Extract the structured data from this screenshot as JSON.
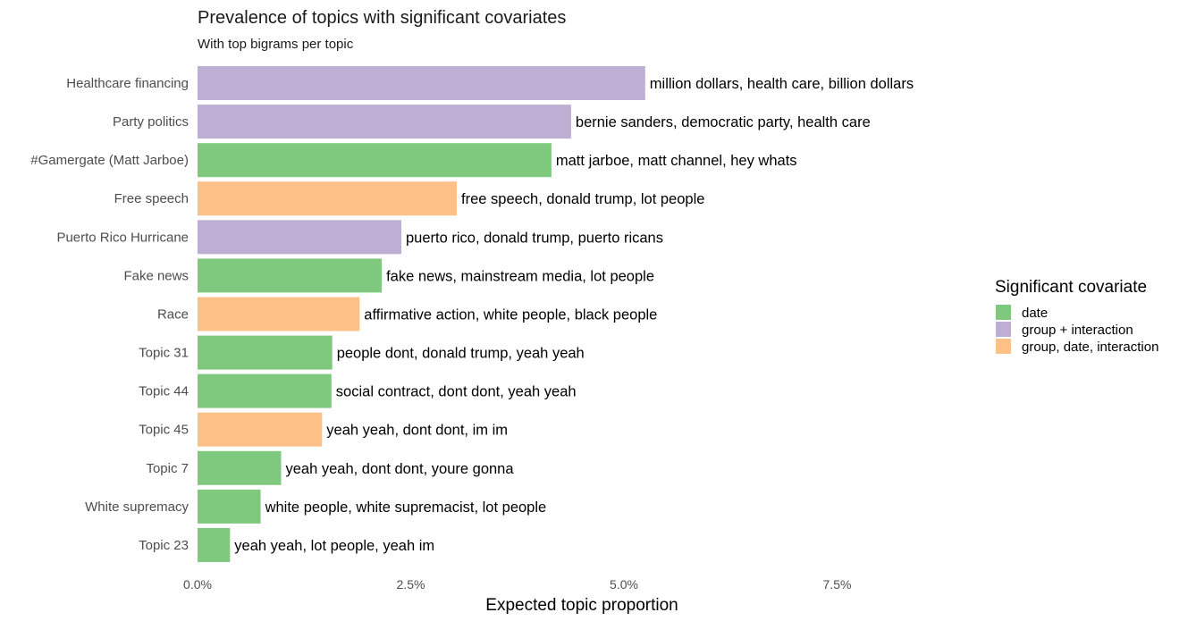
{
  "chart_data": {
    "type": "bar",
    "orientation": "horizontal",
    "title": "Prevalence of topics with significant covariates",
    "subtitle": "With top bigrams per topic",
    "xlabel": "Expected topic proportion",
    "ylabel": "",
    "xlim": [
      0,
      0.09
    ],
    "x_ticks": [
      {
        "value": 0.0,
        "label": "0.0%"
      },
      {
        "value": 0.025,
        "label": "2.5%"
      },
      {
        "value": 0.05,
        "label": "5.0%"
      },
      {
        "value": 0.075,
        "label": "7.5%"
      }
    ],
    "grid": false,
    "legend_position": "right",
    "legend": {
      "title": "Significant covariate",
      "entries": [
        {
          "key": "date",
          "label": "date",
          "color": "#7fc97f"
        },
        {
          "key": "group_interaction",
          "label": "group + interaction",
          "color": "#beaed4"
        },
        {
          "key": "group_date_interaction",
          "label": "group, date, interaction",
          "color": "#fdc086"
        }
      ]
    },
    "bars": [
      {
        "category": "Healthcare financing",
        "value": 0.0525,
        "group": "group_interaction",
        "label": "million dollars, health care, billion dollars"
      },
      {
        "category": "Party politics",
        "value": 0.0438,
        "group": "group_interaction",
        "label": "bernie sanders, democratic party, health care"
      },
      {
        "category": "#Gamergate (Matt Jarboe)",
        "value": 0.0415,
        "group": "date",
        "label": "matt jarboe, matt channel, hey whats"
      },
      {
        "category": "Free speech",
        "value": 0.0304,
        "group": "group_date_interaction",
        "label": "free speech, donald trump, lot people"
      },
      {
        "category": "Puerto Rico Hurricane",
        "value": 0.0239,
        "group": "group_interaction",
        "label": "puerto rico, donald trump, puerto ricans"
      },
      {
        "category": "Fake news",
        "value": 0.0216,
        "group": "date",
        "label": "fake news, mainstream media, lot people"
      },
      {
        "category": "Race",
        "value": 0.019,
        "group": "group_date_interaction",
        "label": "affirmative action, white people, black people"
      },
      {
        "category": "Topic 31",
        "value": 0.0158,
        "group": "date",
        "label": "people dont, donald trump, yeah yeah"
      },
      {
        "category": "Topic 44",
        "value": 0.0157,
        "group": "date",
        "label": "social contract, dont dont, yeah yeah"
      },
      {
        "category": "Topic 45",
        "value": 0.0146,
        "group": "group_date_interaction",
        "label": "yeah yeah, dont dont, im im"
      },
      {
        "category": "Topic 7",
        "value": 0.0098,
        "group": "date",
        "label": "yeah yeah, dont dont, youre gonna"
      },
      {
        "category": "White supremacy",
        "value": 0.0074,
        "group": "date",
        "label": "white people, white supremacist, lot people"
      },
      {
        "category": "Topic 23",
        "value": 0.0038,
        "group": "date",
        "label": "yeah yeah, lot people, yeah im"
      }
    ]
  }
}
